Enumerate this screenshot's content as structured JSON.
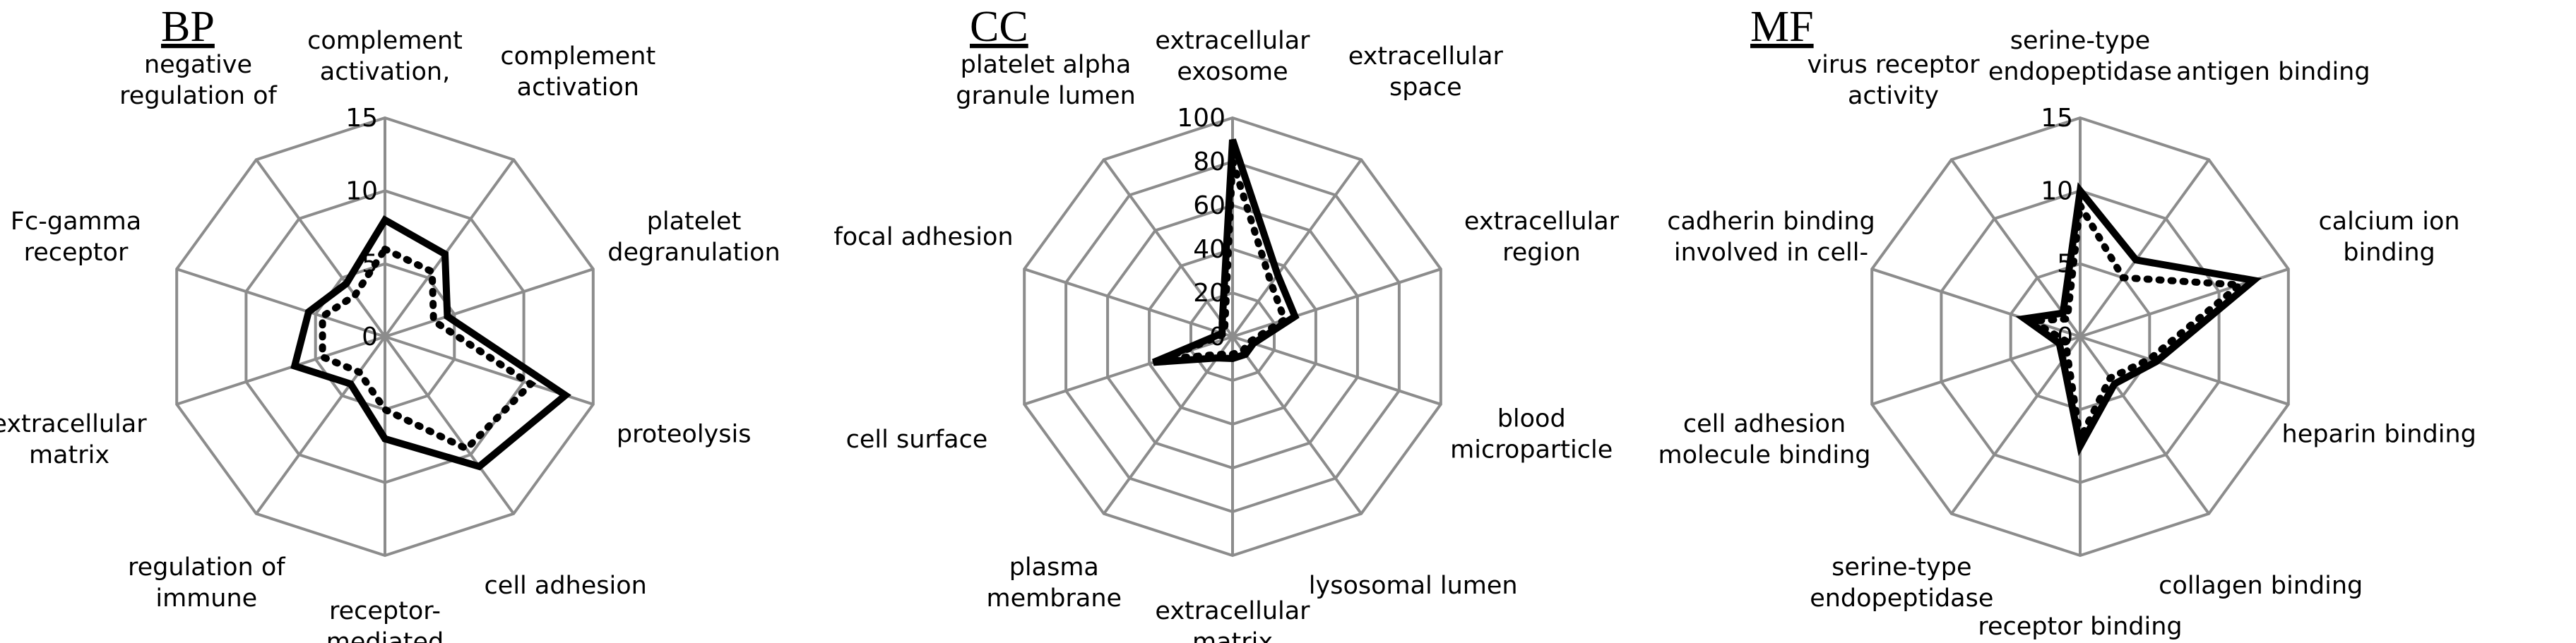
{
  "chart_data": [
    {
      "type": "radar",
      "title": "BP",
      "categories": [
        "complement activation,",
        "complement activation",
        "platelet degranulation",
        "proteolysis",
        "cell adhesion",
        "receptor-mediated",
        "regulation of immune",
        "extracellular matrix",
        "Fc-gamma receptor",
        "negative regulation of"
      ],
      "category_lines": [
        [
          "complement",
          "activation,"
        ],
        [
          "complement",
          "activation"
        ],
        [
          "platelet",
          "degranulation"
        ],
        [
          "proteolysis"
        ],
        [
          "cell adhesion"
        ],
        [
          "receptor-",
          "mediated"
        ],
        [
          "regulation of",
          "immune"
        ],
        [
          "extracellular",
          "matrix"
        ],
        [
          "Fc-gamma",
          "receptor"
        ],
        [
          "negative",
          "regulation of"
        ]
      ],
      "rmax": 15,
      "ticks": [
        0,
        5,
        10,
        15
      ],
      "series": [
        {
          "style": "solid",
          "values": [
            8,
            7,
            4.5,
            13,
            11,
            7,
            4,
            6.5,
            5.5,
            4.5
          ]
        },
        {
          "style": "dotted",
          "values": [
            6,
            5.5,
            3.5,
            10.5,
            9.5,
            5,
            3,
            4.5,
            4.5,
            3.5
          ]
        }
      ]
    },
    {
      "type": "radar",
      "title": "CC",
      "categories": [
        "extracellular exosome",
        "extracellular space",
        "extracellular region",
        "blood microparticle",
        "lysosomal lumen",
        "extracellular matrix",
        "plasma membrane",
        "cell surface",
        "focal adhesion",
        "platelet alpha granule lumen"
      ],
      "category_lines": [
        [
          "extracellular",
          "exosome"
        ],
        [
          "extracellular",
          "space"
        ],
        [
          "extracellular",
          "region"
        ],
        [
          "blood",
          "microparticle"
        ],
        [
          "lysosomal lumen"
        ],
        [
          "extracellular",
          "matrix"
        ],
        [
          "plasma",
          "membrane"
        ],
        [
          "cell surface"
        ],
        [
          "focal adhesion"
        ],
        [
          "platelet alpha",
          "granule lumen"
        ]
      ],
      "rmax": 100,
      "ticks": [
        0,
        20,
        40,
        60,
        80,
        100
      ],
      "series": [
        {
          "style": "solid",
          "values": [
            90,
            35,
            30,
            10,
            10,
            10,
            12,
            38,
            5,
            8
          ]
        },
        {
          "style": "dotted",
          "values": [
            80,
            30,
            25,
            8,
            8,
            8,
            10,
            33,
            4,
            6
          ]
        }
      ]
    },
    {
      "type": "radar",
      "title": "MF",
      "categories": [
        "serine-type endopeptidase",
        "antigen binding",
        "calcium ion binding",
        "heparin binding",
        "collagen binding",
        "receptor binding",
        "serine-type endopeptidase",
        "cell adhesion molecule binding",
        "cadherin binding involved in cell-",
        "virus receptor activity"
      ],
      "category_lines": [
        [
          "serine-type",
          "endopeptidase"
        ],
        [
          "antigen binding"
        ],
        [
          "calcium ion",
          "binding"
        ],
        [
          "heparin binding"
        ],
        [
          "collagen binding"
        ],
        [
          "receptor binding"
        ],
        [
          "serine-type",
          "endopeptidase"
        ],
        [
          "cell adhesion",
          "molecule binding"
        ],
        [
          "cadherin binding",
          "involved in cell-"
        ],
        [
          "virus receptor",
          "activity"
        ]
      ],
      "rmax": 15,
      "ticks": [
        0,
        5,
        10,
        15
      ],
      "series": [
        {
          "style": "solid",
          "values": [
            10,
            6.5,
            12.5,
            5.5,
            4,
            7.5,
            2,
            1.5,
            4,
            2
          ]
        },
        {
          "style": "dotted",
          "values": [
            9,
            5,
            11.5,
            5,
            3.5,
            7,
            1.5,
            1,
            3.5,
            1.5
          ]
        }
      ]
    }
  ]
}
